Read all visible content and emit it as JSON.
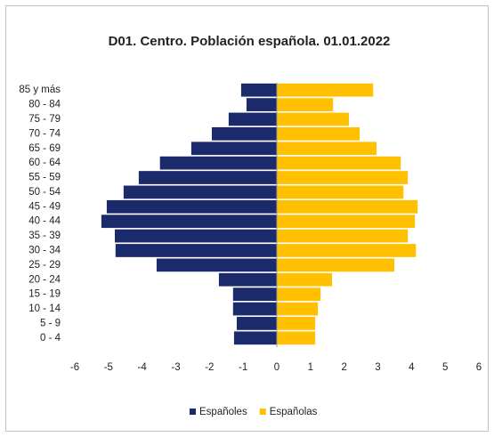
{
  "chart_data": {
    "type": "bar",
    "orientation": "horizontal",
    "title": "D01. Centro. Población española. 01.01.2022",
    "categories": [
      "85 y más",
      "80 - 84",
      "75 - 79",
      "70 - 74",
      "65 - 69",
      "60 - 64",
      "55 - 59",
      "50 - 54",
      "45 - 49",
      "40 - 44",
      "35 - 39",
      "30 - 34",
      "25 - 29",
      "20 - 24",
      "15 - 19",
      "10 - 14",
      "5 - 9",
      "0 - 4"
    ],
    "series": [
      {
        "name": "Españoles",
        "color": "#1b2a6b",
        "values": [
          -1.06,
          -0.9,
          -1.43,
          -1.93,
          -2.54,
          -3.47,
          -4.1,
          -4.55,
          -5.05,
          -5.21,
          -4.81,
          -4.79,
          -3.57,
          -1.72,
          -1.3,
          -1.3,
          -1.19,
          -1.27
        ]
      },
      {
        "name": "Españolas",
        "color": "#ffc000",
        "values": [
          2.86,
          1.67,
          2.14,
          2.46,
          2.96,
          3.68,
          3.89,
          3.76,
          4.18,
          4.1,
          3.89,
          4.13,
          3.49,
          1.64,
          1.3,
          1.22,
          1.14,
          1.14
        ]
      }
    ],
    "xlim": [
      -6,
      6
    ],
    "xticks": [
      -6,
      -5,
      -4,
      -3,
      -2,
      -1,
      0,
      1,
      2,
      3,
      4,
      5,
      6
    ],
    "legend": "bottom"
  }
}
